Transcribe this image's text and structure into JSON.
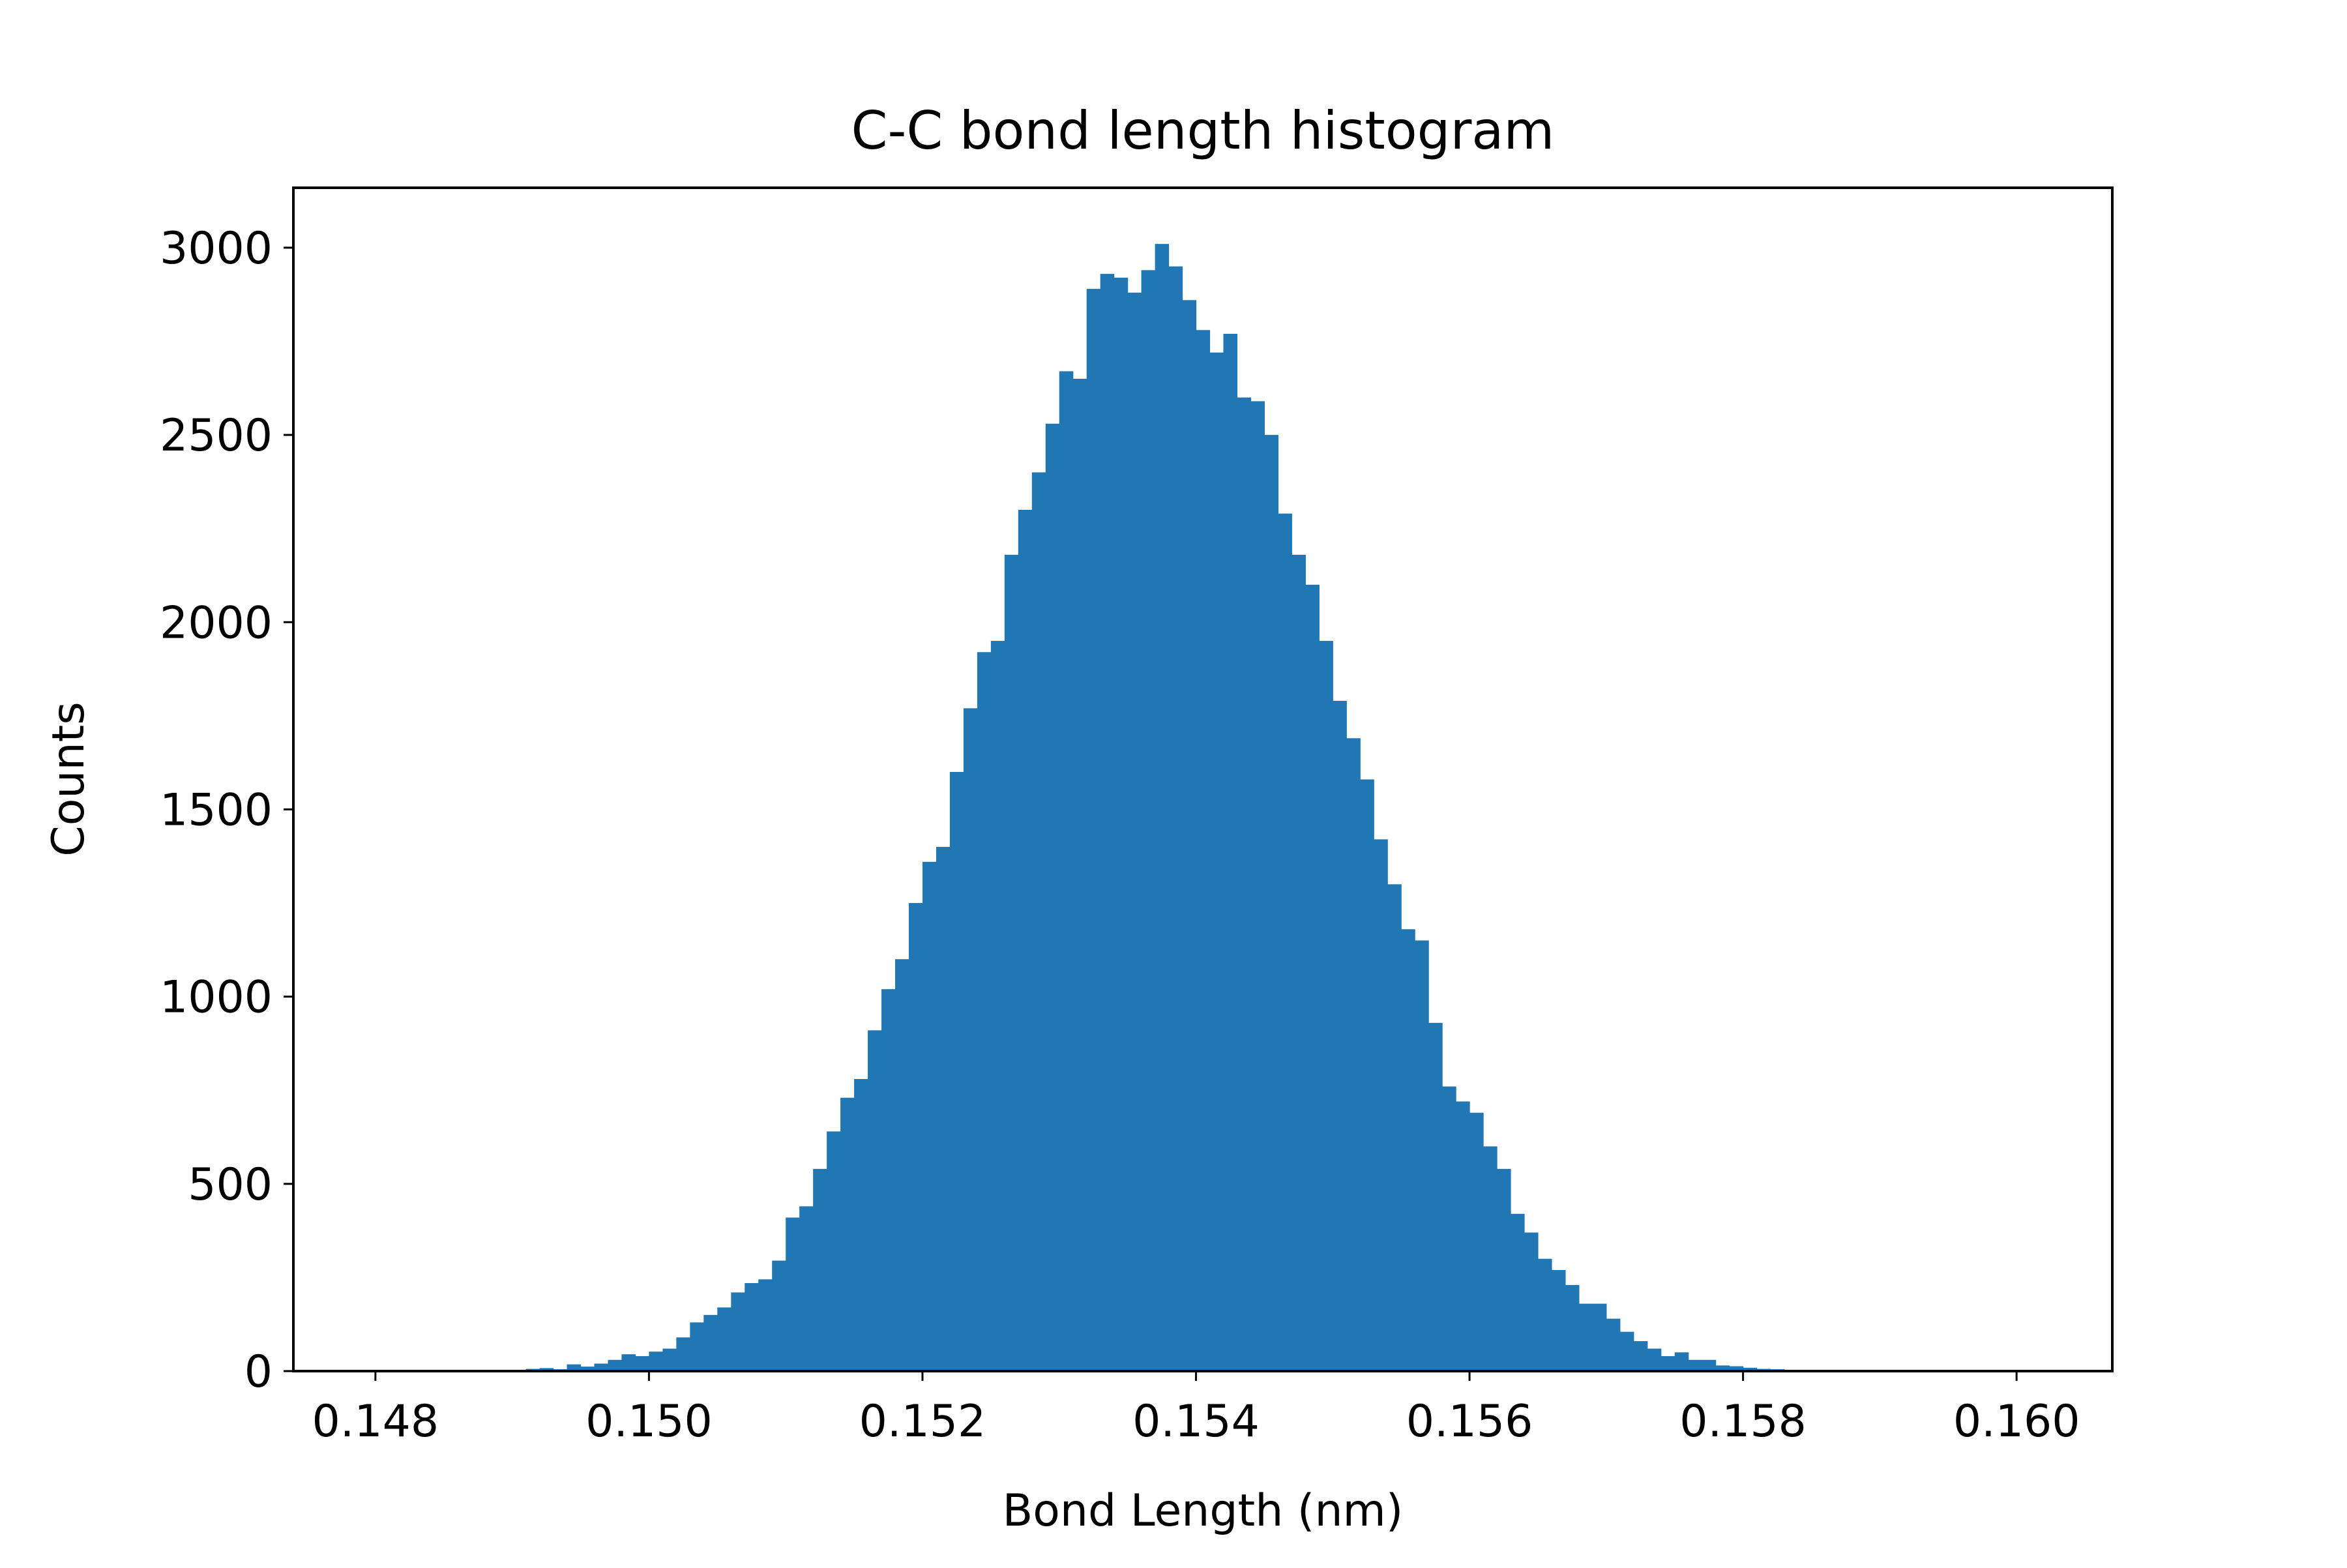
{
  "chart_data": {
    "type": "bar",
    "title": "C-C bond length histogram",
    "xlabel": "Bond Length (nm)",
    "ylabel": "Counts",
    "xlim": [
      0.1474,
      0.1607
    ],
    "ylim": [
      0,
      3160
    ],
    "xticks": [
      0.148,
      0.15,
      0.152,
      0.154,
      0.156,
      0.158,
      0.16
    ],
    "xtick_labels": [
      "0.148",
      "0.150",
      "0.152",
      "0.154",
      "0.156",
      "0.158",
      "0.160"
    ],
    "yticks": [
      0,
      500,
      1000,
      1500,
      2000,
      2500,
      3000
    ],
    "ytick_labels": [
      "0",
      "500",
      "1000",
      "1500",
      "2000",
      "2500",
      "3000"
    ],
    "bin_range": [
      0.148,
      0.16
    ],
    "bar_color": "#2176b4",
    "grid": false,
    "legend": false,
    "values": [
      0,
      0,
      0,
      0,
      0,
      0,
      0,
      0,
      0,
      0,
      0,
      6,
      8,
      5,
      18,
      12,
      20,
      30,
      45,
      40,
      52,
      60,
      90,
      130,
      150,
      170,
      210,
      235,
      245,
      295,
      410,
      440,
      540,
      640,
      730,
      780,
      910,
      1020,
      1100,
      1250,
      1360,
      1400,
      1600,
      1770,
      1920,
      1950,
      2180,
      2300,
      2400,
      2530,
      2670,
      2650,
      2890,
      2930,
      2920,
      2880,
      2940,
      3010,
      2950,
      2860,
      2780,
      2720,
      2770,
      2600,
      2590,
      2500,
      2290,
      2180,
      2100,
      1950,
      1790,
      1690,
      1580,
      1420,
      1300,
      1180,
      1150,
      930,
      760,
      720,
      690,
      600,
      540,
      420,
      370,
      300,
      270,
      230,
      180,
      180,
      140,
      105,
      80,
      60,
      40,
      50,
      30,
      30,
      15,
      13,
      9,
      6,
      5,
      2,
      0,
      0,
      0,
      0,
      0,
      0,
      0,
      0,
      0,
      0,
      0,
      0,
      0,
      0,
      0,
      0
    ]
  }
}
